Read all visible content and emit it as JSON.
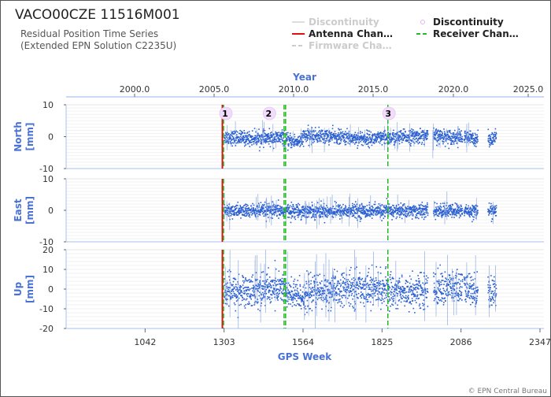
{
  "title": "VACO00CZE 11516M001",
  "subtitle_line1": "Residual Position Time Series",
  "subtitle_line2": "(Extended EPN Solution C2235U)",
  "copyright": "© EPN Central Bureau",
  "colors": {
    "data": "#2a5fd0",
    "antenna": "#dd1111",
    "receiver": "#22bb22",
    "firmware": "#cccccc",
    "discontinuity": "#e0b3f5",
    "axis_label": "#4a72d4"
  },
  "legend": [
    {
      "label": "Discontinuity",
      "style": "line",
      "color": "#dddddd",
      "faded": true
    },
    {
      "label": "Discontinuity",
      "style": "circle",
      "color": "#e0b3f5",
      "faded": false
    },
    {
      "label": "Antenna Chan…",
      "style": "solid",
      "color": "#dd1111",
      "faded": false
    },
    {
      "label": "Receiver Chan…",
      "style": "dashed",
      "color": "#22bb22",
      "faded": false
    },
    {
      "label": "Firmware Cha…",
      "style": "dashed",
      "color": "#cccccc",
      "faded": true
    }
  ],
  "chart_data": {
    "type": "scatter",
    "top_axis": {
      "label": "Year",
      "ticks": [
        "2000.0",
        "2005.0",
        "2010.0",
        "2015.0",
        "2020.0",
        "2025.0"
      ]
    },
    "bottom_axis": {
      "label": "GPS Week",
      "ticks": [
        "1042",
        "1303",
        "1564",
        "1825",
        "2086",
        "2347"
      ],
      "range": [
        781,
        2360
      ]
    },
    "antenna_changes": [
      1300
    ],
    "receiver_changes": [
      1300,
      1505,
      1500,
      1843
    ],
    "discontinuities": [
      {
        "label": "1",
        "week": 1309
      },
      {
        "label": "2",
        "week": 1453
      },
      {
        "label": "3",
        "week": 1848
      }
    ],
    "panels": [
      {
        "ylabel": "North",
        "unit": "[mm]",
        "ylim": [
          -10,
          10
        ],
        "ticks": [
          "10",
          "0",
          "-10"
        ]
      },
      {
        "ylabel": "East",
        "unit": "[mm]",
        "ylim": [
          -10,
          10
        ],
        "ticks": [
          "10",
          "0",
          "-10"
        ]
      },
      {
        "ylabel": "Up",
        "unit": "[mm]",
        "ylim": [
          -20,
          20
        ],
        "ticks": [
          "20",
          "10",
          "0",
          "-10",
          "-20"
        ]
      }
    ],
    "data_span_weeks": [
      1300,
      2200
    ],
    "gaps_weeks": [
      [
        1975,
        1992
      ],
      [
        2089,
        2093
      ],
      [
        2140,
        2172
      ]
    ]
  }
}
